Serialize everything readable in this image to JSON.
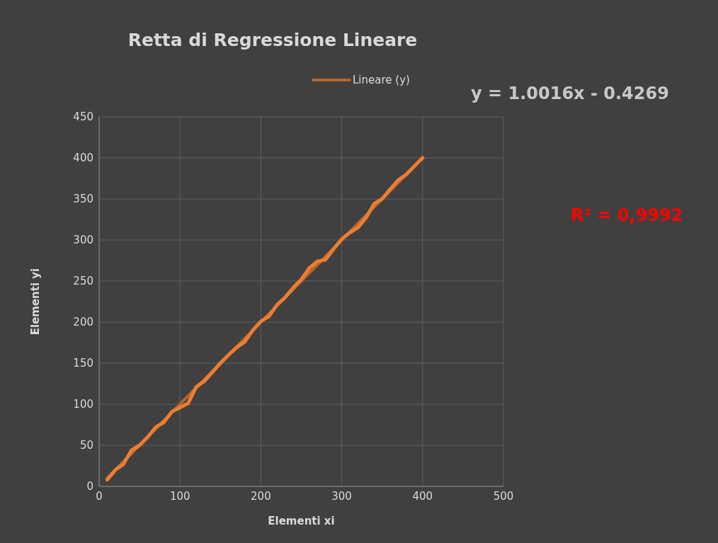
{
  "chart_data": {
    "type": "line",
    "title": "Retta di Regressione Lineare",
    "xlabel": "Elementi xi",
    "ylabel": "Elementi yi",
    "series": [
      {
        "color": "#ed7d31",
        "x": [
          10,
          20,
          30,
          40,
          50,
          60,
          70,
          80,
          90,
          100,
          110,
          120,
          130,
          140,
          150,
          160,
          170,
          180,
          190,
          200,
          210,
          220,
          230,
          240,
          250,
          260,
          270,
          280,
          290,
          300,
          310,
          320,
          330,
          340,
          350,
          360,
          370,
          380,
          390,
          400
        ],
        "values": [
          8,
          20,
          27,
          44,
          50,
          60,
          72,
          78,
          91,
          96,
          101,
          121,
          128,
          139,
          150,
          160,
          169,
          176,
          190,
          201,
          207,
          221,
          230,
          242,
          252,
          266,
          274,
          276,
          289,
          301,
          309,
          315,
          327,
          344,
          350,
          362,
          373,
          380,
          390,
          400
        ]
      },
      {
        "name": "Lineare (y)",
        "color": "#b4682f",
        "x": [
          10,
          400
        ],
        "values": [
          10,
          400
        ]
      }
    ],
    "xlim": [
      0,
      500
    ],
    "xticks": [
      0,
      100,
      200,
      300,
      400,
      500
    ],
    "ylim": [
      0,
      450
    ],
    "yticks": [
      0,
      50,
      100,
      150,
      200,
      250,
      300,
      350,
      400,
      450
    ],
    "grid": true,
    "legend": "top",
    "marker": "none",
    "line_style": "solid",
    "annotations": [
      "y = 1.0016x - 0.4269",
      "R² = 0,9992"
    ]
  }
}
